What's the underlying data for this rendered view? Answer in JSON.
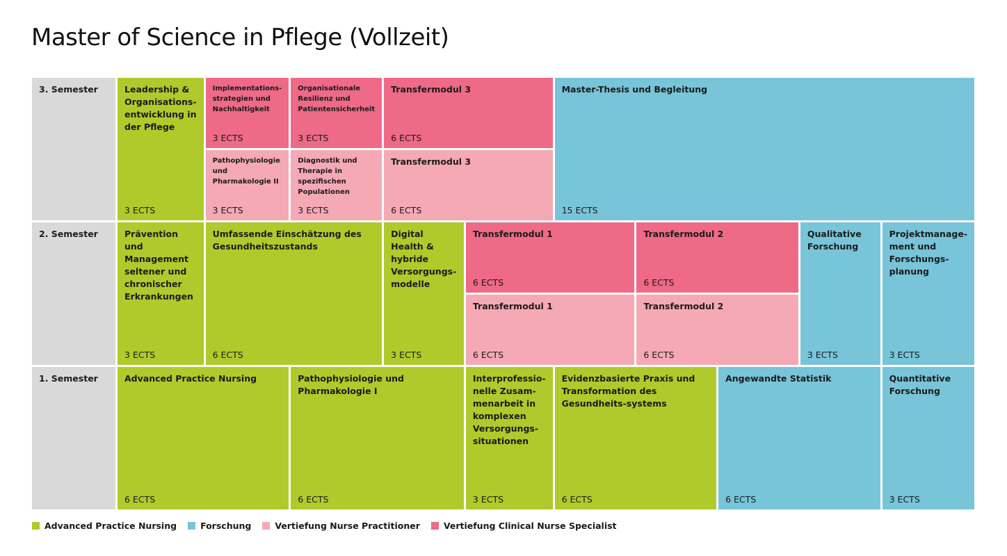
{
  "title": "Master of Science in Pflege (Vollzeit)",
  "semesters": {
    "s3": "3. Semester",
    "s2": "2. Semester",
    "s1": "1. Semester"
  },
  "modules": {
    "leadership": {
      "name": "Leadership & Organisations-entwicklung in der Pflege",
      "ects": "3 ECTS"
    },
    "implementation": {
      "name": "Implementations-strategien und Nachhaltigkeit",
      "ects": "3 ECTS"
    },
    "resilienz": {
      "name": "Organisationale Resilienz und Patientensicherheit",
      "ects": "3 ECTS"
    },
    "transfer3_cns": {
      "name": "Transfermodul 3",
      "ects": "6 ECTS"
    },
    "thesis": {
      "name": "Master-Thesis und Begleitung",
      "ects": "15 ECTS"
    },
    "patho2": {
      "name": "Pathophysiologie und Pharmakologie II",
      "ects": "3 ECTS"
    },
    "diagnostik": {
      "name": "Diagnostik und Therapie in spezifischen Populationen",
      "ects": "3 ECTS"
    },
    "transfer3_np": {
      "name": "Transfermodul 3",
      "ects": "6 ECTS"
    },
    "praevention": {
      "name": "Prävention und Management seltener und chronischer Erkrankungen",
      "ects": "3 ECTS"
    },
    "einschaetzung": {
      "name": "Umfassende Einschätzung des Gesundheitszustands",
      "ects": "6 ECTS"
    },
    "digital": {
      "name": "Digital Health & hybride Versorgungs-modelle",
      "ects": "3 ECTS"
    },
    "transfer1_cns": {
      "name": "Transfermodul 1",
      "ects": "6 ECTS"
    },
    "transfer2_cns": {
      "name": "Transfermodul 2",
      "ects": "6 ECTS"
    },
    "transfer1_np": {
      "name": "Transfermodul 1",
      "ects": "6 ECTS"
    },
    "transfer2_np": {
      "name": "Transfermodul 2",
      "ects": "6 ECTS"
    },
    "qualitativ": {
      "name": "Qualitative Forschung",
      "ects": "3 ECTS"
    },
    "projekt": {
      "name": "Projektmanage-ment und Forschungs-planung",
      "ects": "3 ECTS"
    },
    "apn": {
      "name": "Advanced Practice Nursing",
      "ects": "6 ECTS"
    },
    "patho1": {
      "name": "Pathophysiologie und Pharmakologie I",
      "ects": "6 ECTS"
    },
    "interprof": {
      "name": "Interprofessio-nelle Zusam-menarbeit in komplexen Versorgungs-situationen",
      "ects": "3 ECTS"
    },
    "evidenz": {
      "name": "Evidenzbasierte Praxis und Transformation des Gesundheits-systems",
      "ects": "6 ECTS"
    },
    "statistik": {
      "name": "Angewandte Statistik",
      "ects": "6 ECTS"
    },
    "quantitativ": {
      "name": "Quantitative Forschung",
      "ects": "3 ECTS"
    }
  },
  "legend": [
    {
      "label": "Advanced Practice Nursing",
      "color": "#b0ca2c"
    },
    {
      "label": "Forschung",
      "color": "#78c4d9"
    },
    {
      "label": "Vertiefung Nurse Practitioner",
      "color": "#f5a9b4"
    },
    {
      "label": "Vertiefung Clinical Nurse Specialist",
      "color": "#ee6a87"
    }
  ]
}
